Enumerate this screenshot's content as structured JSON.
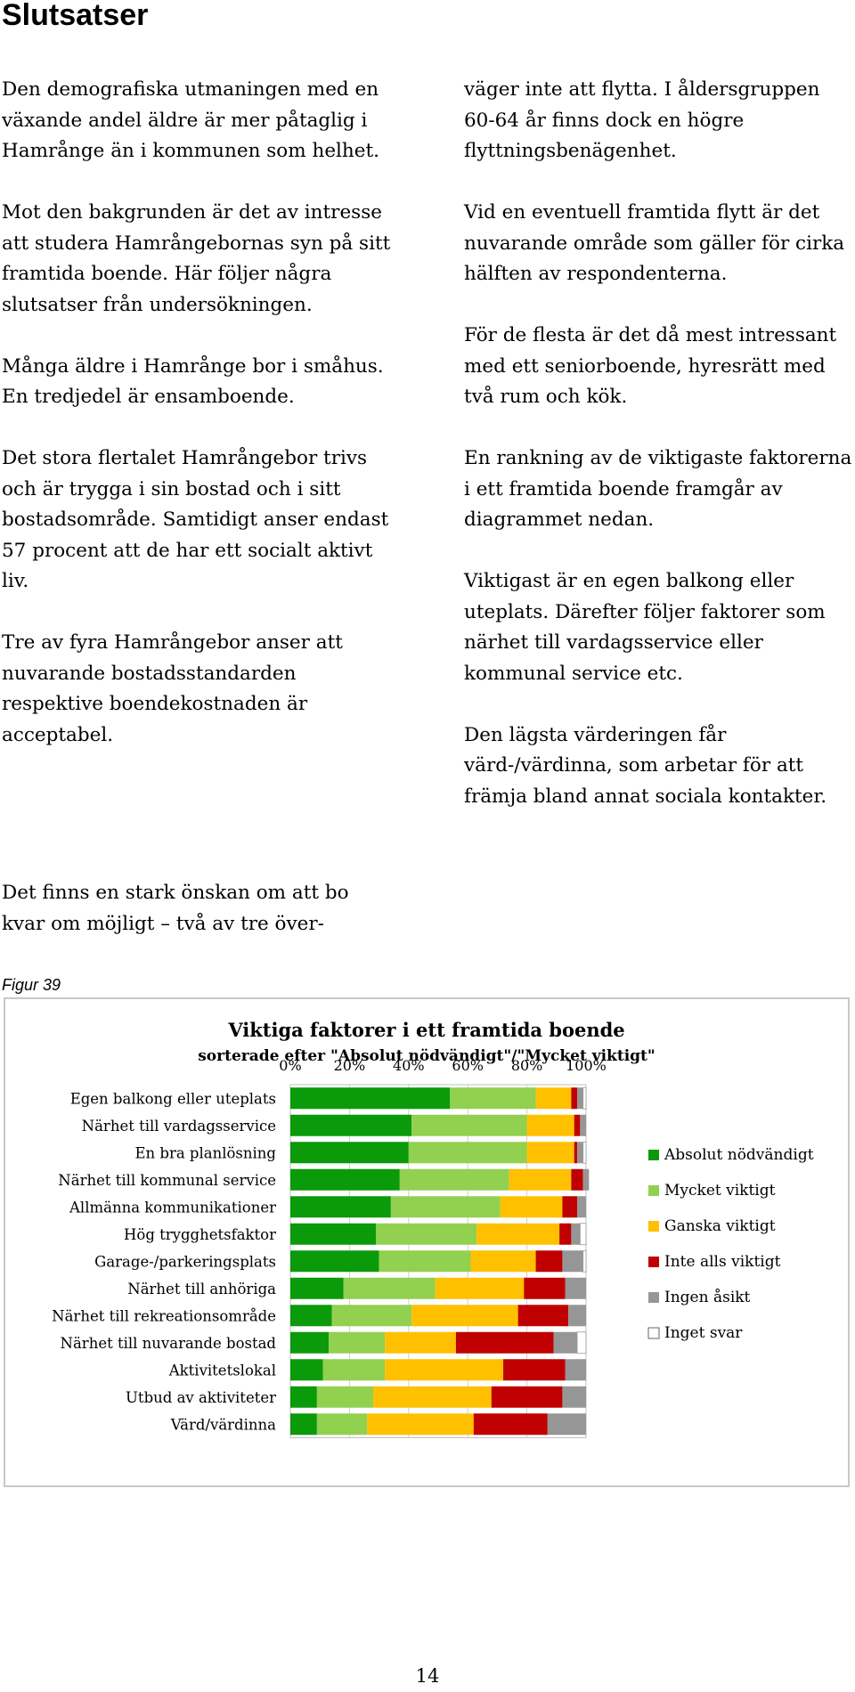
{
  "page": {
    "title": "Slutsatser",
    "figure_label": "Figur 39",
    "page_number": "14"
  },
  "left_column": [
    "Den demografiska utmaningen med en växande andel äldre är mer påtaglig i Hamrånge än i  kommunen som helhet.",
    "Mot den bakgrunden är det av intresse att studera Hamrångebornas syn på sitt framtida boende. Här följer några slutsatser från undersökningen.",
    "Många äldre i Hamrånge bor i småhus. En tredjedel är ensamboende.",
    "Det stora flertalet Hamrångebor trivs och är trygga i sin bostad och i sitt bostadsområde. Samtidigt anser endast 57 procent att de har ett socialt aktivt liv.",
    "Tre av fyra Hamrångebor anser att nuvarande bostadsstandarden respektive boendekostnaden är acceptabel."
  ],
  "bottom_paragraph": "Det finns en stark önskan om att bo kvar om möjligt – två av tre över-",
  "right_column": [
    "väger inte att flytta. I åldersgruppen 60-64 år finns dock en högre flyttningsbenägenhet.",
    "Vid en eventuell framtida flytt är det nuvarande område som gäller för cirka hälften av respondenterna.",
    "För de flesta är det då mest intressant med ett  seniorboende, hyresrätt med två rum och kök.",
    "En rankning av de viktigaste faktorerna i ett framtida boende framgår av diagrammet nedan.",
    "Viktigast är en egen balkong eller uteplats. Därefter följer faktorer som närhet till vardagsservice eller kommunal service etc.",
    "Den lägsta värderingen får värd-/värdinna, som arbetar för att främja bland annat sociala kontakter."
  ],
  "chart_data": {
    "type": "bar",
    "orientation": "horizontal",
    "stacked": true,
    "title": "Viktiga faktorer i ett framtida boende",
    "subtitle": "sorterade efter \"Absolut nödvändigt\"/\"Mycket viktigt\"",
    "xlim": [
      0,
      100
    ],
    "xticks": [
      "0%",
      "20%",
      "40%",
      "60%",
      "80%",
      "100%"
    ],
    "grid": true,
    "legend_position": "right",
    "categories": [
      "Egen balkong eller uteplats",
      "Närhet till vardagsservice",
      "En bra planlösning",
      "Närhet till kommunal service",
      "Allmänna kommunikationer",
      "Hög trygghetsfaktor",
      "Garage-/parkeringsplats",
      "Närhet till anhöriga",
      "Närhet till rekreationsområde",
      "Närhet till nuvarande bostad",
      "Aktivitetslokal",
      "Utbud av aktiviteter",
      "Värd/värdinna"
    ],
    "series": [
      {
        "name": "Absolut nödvändigt",
        "color": "#0a9a0a",
        "values": [
          54,
          41,
          40,
          37,
          34,
          29,
          30,
          18,
          14,
          13,
          11,
          9,
          9
        ]
      },
      {
        "name": "Mycket viktigt",
        "color": "#92d050",
        "values": [
          29,
          39,
          40,
          37,
          37,
          34,
          31,
          31,
          27,
          19,
          21,
          19,
          17
        ]
      },
      {
        "name": "Ganska viktigt",
        "color": "#ffc000",
        "values": [
          12,
          16,
          16,
          21,
          21,
          28,
          22,
          30,
          36,
          24,
          40,
          40,
          36
        ]
      },
      {
        "name": "Inte alls viktigt",
        "color": "#c00000",
        "values": [
          2,
          2,
          1,
          4,
          5,
          4,
          9,
          14,
          17,
          33,
          21,
          24,
          25
        ]
      },
      {
        "name": "Ingen åsikt",
        "color": "#969696",
        "values": [
          2,
          2,
          2,
          2,
          3,
          3,
          7,
          7,
          6,
          8,
          7,
          8,
          13
        ]
      },
      {
        "name": "Inget svar",
        "color": "#ffffff",
        "values": [
          1,
          0,
          1,
          0,
          0,
          2,
          1,
          0,
          0,
          3,
          0,
          0,
          0
        ]
      }
    ]
  }
}
